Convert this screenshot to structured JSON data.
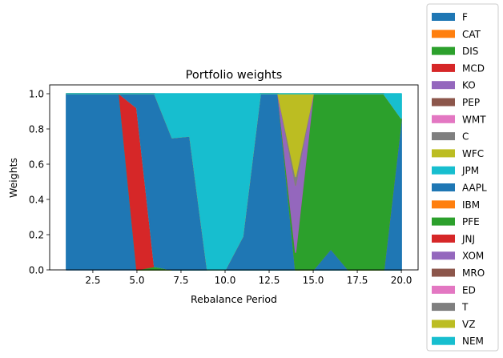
{
  "chart_data": {
    "type": "area",
    "stacked": true,
    "title": "Portfolio weights",
    "xlabel": "Rebalance Period",
    "ylabel": "Weights",
    "xlim": [
      0.05,
      20.95
    ],
    "ylim": [
      0,
      1.05
    ],
    "xticks": [
      2.5,
      5.0,
      7.5,
      10.0,
      12.5,
      15.0,
      17.5,
      20.0
    ],
    "xtick_labels": [
      "2.5",
      "5.0",
      "7.5",
      "10.0",
      "12.5",
      "15.0",
      "17.5",
      "20.0"
    ],
    "yticks": [
      0.0,
      0.2,
      0.4,
      0.6,
      0.8,
      1.0
    ],
    "ytick_labels": [
      "0.0",
      "0.2",
      "0.4",
      "0.6",
      "0.8",
      "1.0"
    ],
    "grid": false,
    "legend_position": "outside-right",
    "x": [
      1,
      2,
      3,
      4,
      5,
      6,
      7,
      8,
      9,
      10,
      11,
      12,
      13,
      14,
      15,
      16,
      17,
      18,
      19,
      20
    ],
    "series": [
      {
        "name": "F",
        "color": "#1f77b4",
        "values": [
          1,
          1,
          1,
          1,
          0,
          0,
          0,
          0,
          0,
          0,
          0,
          0,
          0,
          0,
          0,
          0,
          0,
          0,
          0,
          0
        ]
      },
      {
        "name": "CAT",
        "color": "#ff7f0e",
        "values": [
          0,
          0,
          0,
          0,
          0,
          0,
          0,
          0,
          0,
          0,
          0,
          0,
          0,
          0,
          0,
          0,
          0,
          0,
          0,
          0
        ]
      },
      {
        "name": "DIS",
        "color": "#2ca02c",
        "values": [
          0,
          0,
          0,
          0,
          0,
          0.02,
          0,
          0,
          0,
          0,
          0,
          0,
          0,
          0,
          0,
          0,
          0,
          0,
          0,
          0
        ]
      },
      {
        "name": "MCD",
        "color": "#d62728",
        "values": [
          0,
          0,
          0,
          0,
          0.92,
          0,
          0,
          0,
          0,
          0,
          0,
          0,
          0,
          0,
          0,
          0,
          0,
          0,
          0,
          0
        ]
      },
      {
        "name": "KO",
        "color": "#9467bd",
        "values": [
          0,
          0,
          0,
          0,
          0,
          0,
          0,
          0,
          0,
          0,
          0,
          0,
          0,
          0,
          0,
          0,
          0,
          0,
          0,
          0
        ]
      },
      {
        "name": "PEP",
        "color": "#8c564b",
        "values": [
          0,
          0,
          0,
          0,
          0,
          0,
          0,
          0,
          0,
          0,
          0,
          0,
          0,
          0,
          0,
          0,
          0,
          0,
          0,
          0
        ]
      },
      {
        "name": "WMT",
        "color": "#e377c2",
        "values": [
          0,
          0,
          0,
          0,
          0,
          0,
          0,
          0,
          0,
          0,
          0,
          0,
          0,
          0,
          0,
          0,
          0,
          0,
          0,
          0
        ]
      },
      {
        "name": "C",
        "color": "#7f7f7f",
        "values": [
          0,
          0,
          0,
          0,
          0,
          0,
          0,
          0,
          0,
          0,
          0,
          0,
          0,
          0,
          0,
          0,
          0,
          0,
          0,
          0
        ]
      },
      {
        "name": "WFC",
        "color": "#bcbd22",
        "values": [
          0,
          0,
          0,
          0,
          0,
          0,
          0,
          0,
          0,
          0,
          0,
          0,
          0,
          0,
          0,
          0,
          0,
          0,
          0,
          0
        ]
      },
      {
        "name": "JPM",
        "color": "#17becf",
        "values": [
          0,
          0,
          0,
          0,
          0,
          0,
          0,
          0,
          0,
          0,
          0,
          0,
          0,
          0,
          0,
          0,
          0,
          0,
          0,
          0
        ]
      },
      {
        "name": "AAPL",
        "color": "#1f77b4",
        "values": [
          0,
          0,
          0,
          0,
          0.08,
          0.98,
          0.75,
          0.76,
          0,
          0,
          0.19,
          1,
          1,
          0,
          0,
          0.12,
          0,
          0,
          0,
          0.86
        ]
      },
      {
        "name": "IBM",
        "color": "#ff7f0e",
        "values": [
          0,
          0,
          0,
          0,
          0,
          0,
          0,
          0,
          0,
          0,
          0,
          0,
          0,
          0,
          0,
          0,
          0,
          0,
          0,
          0
        ]
      },
      {
        "name": "PFE",
        "color": "#2ca02c",
        "values": [
          0,
          0,
          0,
          0,
          0,
          0,
          0,
          0,
          0,
          0,
          0,
          0,
          0,
          0.1,
          1,
          0.88,
          1,
          1,
          1,
          0
        ]
      },
      {
        "name": "JNJ",
        "color": "#d62728",
        "values": [
          0,
          0,
          0,
          0,
          0,
          0,
          0,
          0,
          0,
          0,
          0,
          0,
          0,
          0,
          0,
          0,
          0,
          0,
          0,
          0
        ]
      },
      {
        "name": "XOM",
        "color": "#9467bd",
        "values": [
          0,
          0,
          0,
          0,
          0,
          0,
          0,
          0,
          0,
          0,
          0,
          0,
          0,
          0.38,
          0,
          0,
          0,
          0,
          0,
          0
        ]
      },
      {
        "name": "MRO",
        "color": "#8c564b",
        "values": [
          0,
          0,
          0,
          0,
          0,
          0,
          0,
          0,
          0,
          0,
          0,
          0,
          0,
          0,
          0,
          0,
          0,
          0,
          0,
          0
        ]
      },
      {
        "name": "ED",
        "color": "#e377c2",
        "values": [
          0,
          0,
          0,
          0,
          0,
          0,
          0,
          0,
          0,
          0,
          0,
          0,
          0,
          0,
          0,
          0,
          0,
          0,
          0,
          0
        ]
      },
      {
        "name": "T",
        "color": "#7f7f7f",
        "values": [
          0,
          0,
          0,
          0,
          0,
          0,
          0,
          0,
          0,
          0,
          0,
          0,
          0,
          0.05,
          0,
          0,
          0,
          0,
          0,
          0
        ]
      },
      {
        "name": "VZ",
        "color": "#bcbd22",
        "values": [
          0,
          0,
          0,
          0,
          0,
          0,
          0,
          0,
          0,
          0,
          0,
          0,
          0,
          0.47,
          0,
          0,
          0,
          0,
          0,
          0
        ]
      },
      {
        "name": "NEM",
        "color": "#17becf",
        "values": [
          0,
          0,
          0,
          0,
          0,
          0,
          0.25,
          0.24,
          1,
          1,
          0.81,
          0,
          0,
          0,
          0,
          0,
          0,
          0,
          0,
          0.14
        ]
      }
    ]
  }
}
